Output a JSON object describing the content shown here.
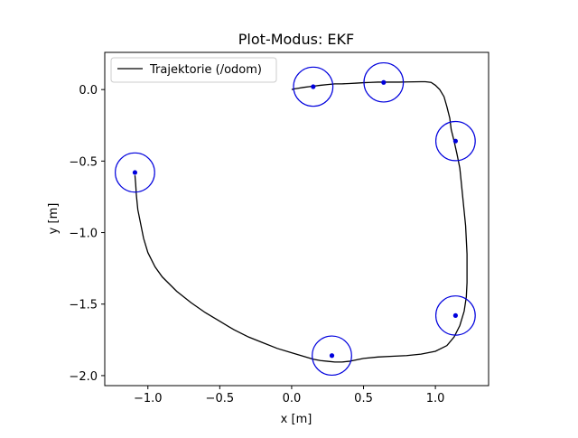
{
  "chart_data": {
    "type": "line",
    "title": "Plot-Modus: EKF",
    "xlabel": "x [m]",
    "ylabel": "y [m]",
    "xlim": [
      -1.3,
      1.37
    ],
    "ylim": [
      -2.07,
      0.26
    ],
    "xticks": [
      -1.0,
      -0.5,
      0.0,
      0.5,
      1.0
    ],
    "xtick_labels": [
      "−1.0",
      "−0.5",
      "0.0",
      "0.5",
      "1.0"
    ],
    "yticks": [
      0.0,
      -0.5,
      -1.0,
      -1.5,
      -2.0
    ],
    "ytick_labels": [
      "0.0",
      "−0.5",
      "−1.0",
      "−1.5",
      "−2.0"
    ],
    "grid": false,
    "legend_position": "top-left",
    "series": [
      {
        "name": "Trajektorie (/odom)",
        "color": "#000000",
        "points": [
          [
            0.0,
            0.0
          ],
          [
            0.02,
            0.005
          ],
          [
            0.05,
            0.01
          ],
          [
            0.08,
            0.015
          ],
          [
            0.12,
            0.02
          ],
          [
            0.16,
            0.025
          ],
          [
            0.2,
            0.03
          ],
          [
            0.25,
            0.035
          ],
          [
            0.3,
            0.04
          ],
          [
            0.35,
            0.04
          ],
          [
            0.4,
            0.042
          ],
          [
            0.45,
            0.045
          ],
          [
            0.5,
            0.048
          ],
          [
            0.55,
            0.05
          ],
          [
            0.6,
            0.052
          ],
          [
            0.65,
            0.052
          ],
          [
            0.7,
            0.052
          ],
          [
            0.75,
            0.052
          ],
          [
            0.8,
            0.053
          ],
          [
            0.85,
            0.054
          ],
          [
            0.9,
            0.055
          ],
          [
            0.93,
            0.055
          ],
          [
            0.97,
            0.05
          ],
          [
            1.0,
            0.03
          ],
          [
            1.03,
            0.0
          ],
          [
            1.06,
            -0.05
          ],
          [
            1.08,
            -0.12
          ],
          [
            1.1,
            -0.2
          ],
          [
            1.11,
            -0.28
          ],
          [
            1.13,
            -0.36
          ],
          [
            1.15,
            -0.45
          ],
          [
            1.17,
            -0.55
          ],
          [
            1.18,
            -0.65
          ],
          [
            1.19,
            -0.75
          ],
          [
            1.2,
            -0.85
          ],
          [
            1.21,
            -0.95
          ],
          [
            1.215,
            -1.05
          ],
          [
            1.22,
            -1.15
          ],
          [
            1.22,
            -1.25
          ],
          [
            1.22,
            -1.35
          ],
          [
            1.215,
            -1.45
          ],
          [
            1.2,
            -1.55
          ],
          [
            1.17,
            -1.65
          ],
          [
            1.13,
            -1.73
          ],
          [
            1.08,
            -1.79
          ],
          [
            1.0,
            -1.83
          ],
          [
            0.9,
            -1.85
          ],
          [
            0.8,
            -1.86
          ],
          [
            0.7,
            -1.865
          ],
          [
            0.6,
            -1.87
          ],
          [
            0.5,
            -1.88
          ],
          [
            0.45,
            -1.89
          ],
          [
            0.4,
            -1.9
          ],
          [
            0.35,
            -1.905
          ],
          [
            0.3,
            -1.905
          ],
          [
            0.25,
            -1.9
          ],
          [
            0.2,
            -1.895
          ],
          [
            0.15,
            -1.885
          ],
          [
            0.1,
            -1.87
          ],
          [
            0.05,
            -1.855
          ],
          [
            0.0,
            -1.84
          ],
          [
            -0.1,
            -1.81
          ],
          [
            -0.2,
            -1.77
          ],
          [
            -0.3,
            -1.73
          ],
          [
            -0.4,
            -1.68
          ],
          [
            -0.5,
            -1.62
          ],
          [
            -0.6,
            -1.56
          ],
          [
            -0.7,
            -1.49
          ],
          [
            -0.8,
            -1.41
          ],
          [
            -0.9,
            -1.31
          ],
          [
            -0.95,
            -1.24
          ],
          [
            -1.0,
            -1.14
          ],
          [
            -1.03,
            -1.04
          ],
          [
            -1.05,
            -0.94
          ],
          [
            -1.07,
            -0.84
          ],
          [
            -1.08,
            -0.74
          ],
          [
            -1.085,
            -0.66
          ],
          [
            -1.09,
            -0.6
          ]
        ]
      }
    ],
    "markers": {
      "color": "#0000dd",
      "radius": 0.137,
      "centers": [
        [
          -1.09,
          -0.58
        ],
        [
          0.15,
          0.02
        ],
        [
          0.64,
          0.05
        ],
        [
          1.14,
          -0.36
        ],
        [
          1.14,
          -1.58
        ],
        [
          0.28,
          -1.86
        ]
      ]
    }
  }
}
